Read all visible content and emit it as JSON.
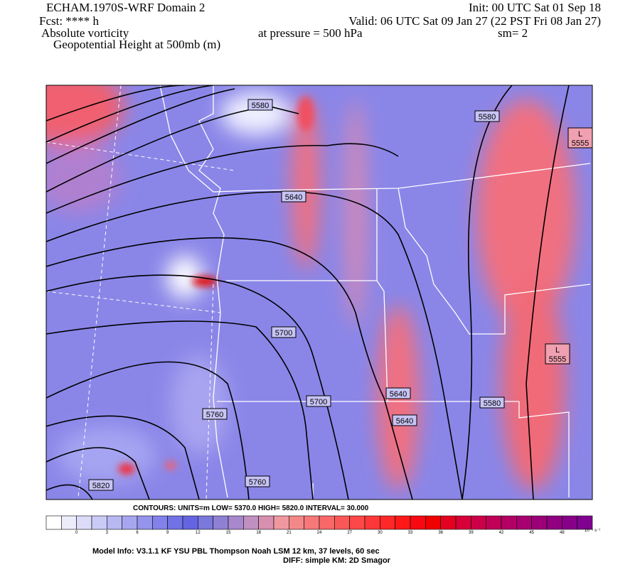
{
  "header": {
    "model": "ECHAM.1970S-WRF Domain 2",
    "init": "Init: 00 UTC Sat 01 Sep 18",
    "fcst": "Fcst: **** h",
    "valid": "Valid: 06 UTC Sat 09 Jan 27 (22 PST Fri 08 Jan 27)",
    "field": "Absolute vorticity",
    "pressure": "at pressure =  500 hPa",
    "smooth": "sm= 2",
    "contour_field": "Geopotential Height at 500mb (m)"
  },
  "map": {
    "contour_labels": [
      5580,
      5580,
      5640,
      5700,
      5640,
      5700,
      5580,
      5640,
      5760,
      5820,
      5760
    ],
    "lows": [
      {
        "symbol": "L",
        "value": 5555
      },
      {
        "symbol": "L",
        "value": 5555
      }
    ]
  },
  "contour_info": "CONTOURS:  UNITS=m  LOW=   5370.0      HIGH=  5820.0      INTERVAL=    30.000",
  "colorbar": {
    "ticks": [
      0,
      3,
      6,
      9,
      12,
      15,
      18,
      21,
      24,
      27,
      30,
      33,
      36,
      39,
      42,
      45,
      48
    ],
    "units": "10⁻⁵ s⁻¹",
    "colors": [
      "#ffffff",
      "#ececfb",
      "#dcdcf8",
      "#cacaf6",
      "#b8b8f3",
      "#a6a6f0",
      "#9494ed",
      "#8282ea",
      "#7272e6",
      "#6464e2",
      "#7a78dc",
      "#9080d4",
      "#a888cc",
      "#c090c0",
      "#d890b0",
      "#f098a0",
      "#f48888",
      "#f67878",
      "#f86868",
      "#fa5858",
      "#fc4848",
      "#fe3838",
      "#ff2828",
      "#ff1818",
      "#f80810",
      "#f00000",
      "#e40020",
      "#d80038",
      "#cc0048",
      "#c00058",
      "#b40064",
      "#a80070",
      "#9c0078",
      "#900080",
      "#880088",
      "#800090"
    ]
  },
  "footer": {
    "model_info": "Model Info: V3.1.1    KF       YSU PBL   Thompson     Noah LSM   12 km,    37 levels,    60 sec",
    "diff": "DIFF: simple KM: 2D Smagor"
  }
}
